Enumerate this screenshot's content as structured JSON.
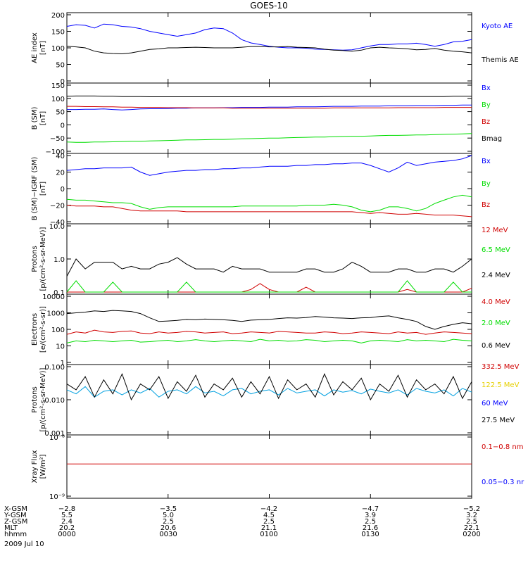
{
  "title": "GOES-10",
  "colors": {
    "black": "#000000",
    "blue": "#0000ff",
    "red": "#d00000",
    "green": "#00dd00",
    "yellow": "#e6d000",
    "cyan": "#00a0e0"
  },
  "chart_data": [
    {
      "type": "line",
      "ylabel": "AE index\n[nT]",
      "ylim": [
        0,
        200
      ],
      "yticks": [
        "200",
        "150",
        "100",
        "50",
        "0"
      ],
      "yscale": "linear",
      "legend": [
        "Kyoto AE",
        "Themis AE"
      ],
      "series": [
        {
          "name": "Kyoto AE",
          "color": "#0000ff",
          "values": [
            165,
            170,
            168,
            160,
            172,
            170,
            165,
            163,
            158,
            150,
            145,
            140,
            135,
            140,
            145,
            155,
            160,
            158,
            145,
            125,
            115,
            110,
            105,
            102,
            100,
            100,
            99,
            96,
            95,
            94,
            93,
            94,
            100,
            106,
            110,
            110,
            112,
            112,
            114,
            110,
            105,
            110,
            118,
            120,
            125
          ]
        },
        {
          "name": "Themis AE",
          "color": "#000000",
          "values": [
            105,
            103,
            100,
            90,
            85,
            83,
            82,
            85,
            90,
            95,
            97,
            100,
            100,
            101,
            102,
            101,
            100,
            100,
            100,
            102,
            104,
            104,
            103,
            103,
            104,
            102,
            101,
            100,
            96,
            93,
            92,
            90,
            93,
            100,
            102,
            100,
            99,
            97,
            94,
            95,
            98,
            93,
            90,
            88,
            85
          ]
        }
      ]
    },
    {
      "type": "line",
      "ylabel": "B (SM)\n[nT]",
      "ylim": [
        -100,
        150
      ],
      "yticks": [
        "150",
        "100",
        "50",
        "0",
        "−50",
        "−100"
      ],
      "yscale": "linear",
      "legend": [
        "Bx",
        "By",
        "Bz",
        "Bmag"
      ],
      "series": [
        {
          "name": "Bx",
          "color": "#0000ff",
          "values": [
            58,
            58,
            59,
            59,
            60,
            58,
            56,
            58,
            60,
            61,
            61,
            62,
            63,
            63,
            64,
            64,
            64,
            65,
            65,
            66,
            66,
            66,
            67,
            67,
            67,
            68,
            68,
            68,
            69,
            70,
            70,
            70,
            71,
            71,
            71,
            72,
            72,
            72,
            73,
            73,
            73,
            74,
            74,
            75,
            75
          ]
        },
        {
          "name": "By",
          "color": "#00dd00",
          "values": [
            -65,
            -66,
            -66,
            -65,
            -65,
            -64,
            -63,
            -62,
            -62,
            -61,
            -60,
            -59,
            -58,
            -57,
            -57,
            -56,
            -55,
            -55,
            -54,
            -53,
            -52,
            -51,
            -50,
            -50,
            -49,
            -48,
            -47,
            -46,
            -46,
            -45,
            -44,
            -43,
            -43,
            -42,
            -41,
            -40,
            -40,
            -39,
            -38,
            -38,
            -37,
            -36,
            -35,
            -34,
            -33
          ]
        },
        {
          "name": "Bz",
          "color": "#d00000",
          "values": [
            70,
            70,
            69,
            69,
            68,
            68,
            67,
            67,
            66,
            66,
            66,
            65,
            65,
            65,
            64,
            64,
            64,
            64,
            63,
            63,
            63,
            63,
            63,
            63,
            63,
            63,
            63,
            63,
            63,
            64,
            64,
            64,
            64,
            64,
            64,
            64,
            65,
            65,
            65,
            65,
            65,
            66,
            66,
            66,
            66
          ]
        },
        {
          "name": "Bmag",
          "color": "#000000",
          "values": [
            108,
            109,
            109,
            109,
            108,
            108,
            107,
            107,
            107,
            106,
            106,
            106,
            106,
            106,
            106,
            106,
            106,
            106,
            106,
            106,
            106,
            106,
            106,
            106,
            106,
            106,
            106,
            106,
            107,
            107,
            107,
            107,
            107,
            107,
            107,
            107,
            107,
            107,
            107,
            107,
            107,
            107,
            108,
            108,
            108
          ]
        }
      ]
    },
    {
      "type": "line",
      "ylabel": "B (SM)−IGRF (SM)\n[nT]",
      "ylim": [
        -40,
        40
      ],
      "yticks": [
        "40",
        "20",
        "0",
        "−20",
        "−40"
      ],
      "yscale": "linear",
      "legend": [
        "Bx",
        "By",
        "Bz"
      ],
      "series": [
        {
          "name": "Bx",
          "color": "#0000ff",
          "values": [
            22,
            23,
            24,
            24,
            25,
            25,
            25,
            26,
            20,
            16,
            18,
            20,
            21,
            22,
            22,
            23,
            23,
            24,
            24,
            25,
            25,
            26,
            27,
            27,
            27,
            28,
            28,
            29,
            29,
            30,
            30,
            31,
            31,
            28,
            24,
            20,
            25,
            32,
            28,
            30,
            32,
            33,
            34,
            36,
            40
          ]
        },
        {
          "name": "By",
          "color": "#00dd00",
          "values": [
            -13,
            -14,
            -14,
            -15,
            -16,
            -17,
            -17,
            -18,
            -22,
            -25,
            -23,
            -22,
            -22,
            -22,
            -22,
            -22,
            -22,
            -22,
            -22,
            -21,
            -21,
            -21,
            -21,
            -21,
            -21,
            -21,
            -20,
            -20,
            -20,
            -19,
            -20,
            -22,
            -26,
            -28,
            -26,
            -22,
            -22,
            -24,
            -27,
            -24,
            -18,
            -14,
            -10,
            -8,
            -10
          ]
        },
        {
          "name": "Bz",
          "color": "#d00000",
          "values": [
            -20,
            -21,
            -21,
            -21,
            -22,
            -22,
            -24,
            -26,
            -27,
            -27,
            -27,
            -27,
            -27,
            -28,
            -28,
            -28,
            -28,
            -28,
            -28,
            -28,
            -28,
            -28,
            -28,
            -28,
            -28,
            -28,
            -28,
            -28,
            -28,
            -28,
            -28,
            -28,
            -29,
            -30,
            -29,
            -30,
            -31,
            -31,
            -30,
            -31,
            -32,
            -32,
            -32,
            -33,
            -34
          ]
        }
      ]
    },
    {
      "type": "line",
      "ylabel": "Protons\n[p/(cm²-s-sr-MeV)]",
      "ylim": [
        0.1,
        10
      ],
      "yticks": [
        "10.0",
        "1.0",
        "0.1"
      ],
      "yscale": "log",
      "legend": [
        "12 MeV",
        "6.5 MeV",
        "2.4 MeV"
      ],
      "series": [
        {
          "name": "12 MeV",
          "color": "#d00000",
          "values": [
            0.1,
            0.1,
            0.1,
            0.1,
            0.1,
            0.1,
            0.1,
            0.1,
            0.1,
            0.1,
            0.1,
            0.1,
            0.1,
            0.1,
            0.1,
            0.1,
            0.1,
            0.1,
            0.1,
            0.1,
            0.12,
            0.18,
            0.12,
            0.1,
            0.1,
            0.1,
            0.14,
            0.1,
            0.1,
            0.1,
            0.1,
            0.1,
            0.1,
            0.1,
            0.1,
            0.1,
            0.1,
            0.12,
            0.1,
            0.1,
            0.1,
            0.1,
            0.1,
            0.1,
            0.13
          ]
        },
        {
          "name": "6.5 MeV",
          "color": "#00dd00",
          "values": [
            0.1,
            0.22,
            0.1,
            0.1,
            0.1,
            0.2,
            0.1,
            0.1,
            0.1,
            0.1,
            0.1,
            0.1,
            0.1,
            0.2,
            0.1,
            0.1,
            0.1,
            0.1,
            0.1,
            0.1,
            0.1,
            0.1,
            0.1,
            0.1,
            0.1,
            0.1,
            0.1,
            0.1,
            0.1,
            0.1,
            0.1,
            0.1,
            0.1,
            0.1,
            0.1,
            0.1,
            0.1,
            0.22,
            0.1,
            0.1,
            0.1,
            0.1,
            0.2,
            0.1,
            0.1
          ]
        },
        {
          "name": "2.4 MeV",
          "color": "#000000",
          "values": [
            0.3,
            1.0,
            0.5,
            0.8,
            0.8,
            0.8,
            0.5,
            0.6,
            0.5,
            0.5,
            0.7,
            0.8,
            1.1,
            0.7,
            0.5,
            0.5,
            0.5,
            0.4,
            0.6,
            0.5,
            0.5,
            0.5,
            0.4,
            0.4,
            0.4,
            0.4,
            0.5,
            0.5,
            0.4,
            0.4,
            0.5,
            0.8,
            0.6,
            0.4,
            0.4,
            0.4,
            0.5,
            0.5,
            0.4,
            0.4,
            0.5,
            0.5,
            0.4,
            0.6,
            1.0
          ]
        }
      ]
    },
    {
      "type": "line",
      "ylabel": "Electrons\n[e/(cm²-s-sr)]",
      "ylim": [
        1,
        10000
      ],
      "yticks": [
        "10000",
        "1000",
        "100",
        "10",
        "1"
      ],
      "yscale": "log",
      "legend": [
        "4.0 MeV",
        "2.0 MeV",
        "0.6 MeV"
      ],
      "series": [
        {
          "name": "4.0 MeV",
          "color": "#d00000",
          "values": [
            50,
            70,
            60,
            90,
            70,
            65,
            75,
            80,
            60,
            55,
            70,
            60,
            65,
            75,
            70,
            60,
            65,
            70,
            55,
            60,
            70,
            65,
            60,
            75,
            70,
            65,
            60,
            60,
            70,
            65,
            55,
            60,
            70,
            65,
            60,
            55,
            70,
            60,
            65,
            50,
            60,
            70,
            65,
            60,
            55
          ]
        },
        {
          "name": "2.0 MeV",
          "color": "#00dd00",
          "values": [
            15,
            20,
            18,
            22,
            20,
            18,
            20,
            22,
            17,
            18,
            20,
            22,
            18,
            20,
            24,
            20,
            18,
            20,
            22,
            20,
            18,
            25,
            20,
            22,
            19,
            20,
            24,
            22,
            18,
            20,
            22,
            20,
            15,
            20,
            22,
            20,
            18,
            24,
            20,
            22,
            20,
            18,
            25,
            22,
            20
          ]
        },
        {
          "name": "0.6 MeV",
          "color": "#000000",
          "values": [
            900,
            1000,
            1100,
            1300,
            1200,
            1400,
            1300,
            1200,
            900,
            500,
            300,
            320,
            350,
            400,
            380,
            420,
            400,
            380,
            350,
            300,
            360,
            380,
            400,
            450,
            500,
            480,
            520,
            600,
            550,
            500,
            480,
            450,
            500,
            520,
            600,
            650,
            500,
            400,
            300,
            150,
            100,
            150,
            200,
            250,
            220
          ]
        }
      ]
    },
    {
      "type": "line",
      "ylabel": "Protons\n[p/(cm²-s-sr-MeV)]",
      "ylim": [
        0.001,
        0.1
      ],
      "yticks": [
        "0.100",
        "0.010",
        "0.001"
      ],
      "yscale": "log",
      "legend": [
        "332.5 MeV",
        "122.5 MeV",
        "60 MeV",
        "27.5 MeV"
      ],
      "series": [
        {
          "name": "60 MeV",
          "color": "#00a0e0",
          "values": [
            0.02,
            0.015,
            0.025,
            0.012,
            0.018,
            0.02,
            0.014,
            0.02,
            0.016,
            0.022,
            0.012,
            0.018,
            0.02,
            0.015,
            0.025,
            0.016,
            0.018,
            0.013,
            0.02,
            0.022,
            0.015,
            0.018,
            0.02,
            0.014,
            0.022,
            0.016,
            0.018,
            0.02,
            0.013,
            0.02,
            0.017,
            0.019,
            0.015,
            0.021,
            0.018,
            0.016,
            0.02,
            0.014,
            0.022,
            0.018,
            0.016,
            0.02,
            0.013,
            0.022,
            0.017
          ]
        },
        {
          "name": "27.5 MeV",
          "color": "#000000",
          "values": [
            0.03,
            0.02,
            0.05,
            0.012,
            0.04,
            0.015,
            0.06,
            0.01,
            0.03,
            0.02,
            0.05,
            0.011,
            0.035,
            0.018,
            0.055,
            0.012,
            0.03,
            0.02,
            0.045,
            0.012,
            0.035,
            0.015,
            0.05,
            0.011,
            0.04,
            0.02,
            0.03,
            0.012,
            0.06,
            0.014,
            0.035,
            0.02,
            0.045,
            0.01,
            0.03,
            0.018,
            0.055,
            0.012,
            0.04,
            0.02,
            0.03,
            0.015,
            0.05,
            0.011,
            0.035
          ]
        }
      ]
    },
    {
      "type": "line",
      "ylabel": "Xray Flux\n[W/m²]",
      "ylim": [
        1e-09,
        1e-08
      ],
      "yticks": [
        "10⁻⁸",
        "10⁻⁹"
      ],
      "yscale": "log",
      "legend": [
        "0.1−0.8 nm",
        "0.05−0.3 nr"
      ],
      "series": [
        {
          "name": "0.1−0.8 nm",
          "color": "#d00000",
          "values": [
            3.5e-09,
            3.5e-09,
            3.5e-09,
            3.5e-09,
            3.5e-09,
            3.5e-09,
            3.5e-09,
            3.5e-09,
            3.5e-09,
            3.5e-09,
            3.5e-09,
            3.5e-09,
            3.5e-09,
            3.5e-09,
            3.5e-09,
            3.5e-09,
            3.5e-09,
            3.5e-09,
            3.5e-09,
            3.5e-09,
            3.5e-09,
            3.5e-09,
            3.5e-09,
            3.5e-09,
            3.5e-09,
            3.5e-09,
            3.5e-09,
            3.5e-09,
            3.5e-09,
            3.5e-09,
            3.5e-09,
            3.5e-09,
            3.5e-09,
            3.5e-09,
            3.5e-09,
            3.5e-09,
            3.5e-09,
            3.5e-09,
            3.5e-09,
            3.5e-09,
            3.5e-09,
            3.5e-09,
            3.5e-09,
            3.5e-09,
            3.5e-09
          ]
        }
      ]
    }
  ],
  "footer": {
    "rows": [
      {
        "label": "X-GSM",
        "values": [
          "−2.8",
          "−3.5",
          "−4.2",
          "−4.7",
          "−5.2"
        ]
      },
      {
        "label": "Y-GSM",
        "values": [
          "5.5",
          "5.0",
          "4.5",
          "3.9",
          "3.2"
        ]
      },
      {
        "label": "Z-GSM",
        "values": [
          "2.4",
          "2.5",
          "2.5",
          "2.5",
          "2.5"
        ]
      },
      {
        "label": "MLT",
        "values": [
          "20.2",
          "20.6",
          "21.1",
          "21.6",
          "22.1"
        ]
      },
      {
        "label": "hhmm",
        "values": [
          "0000",
          "0030",
          "0100",
          "0130",
          "0200"
        ]
      }
    ],
    "date": "2009 Jul 10"
  }
}
